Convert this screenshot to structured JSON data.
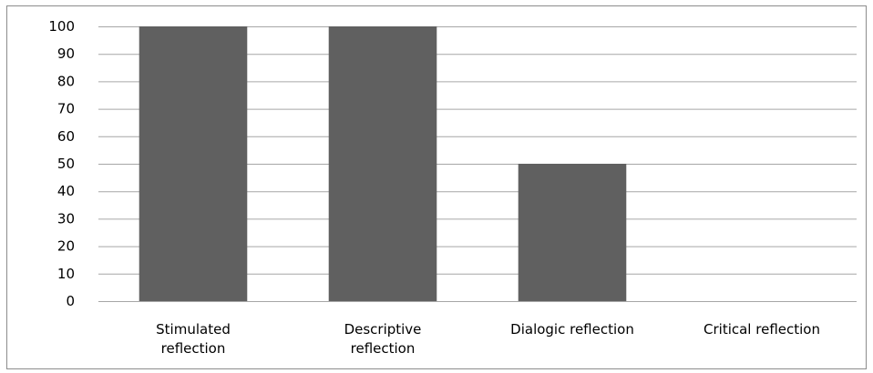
{
  "chart_data": {
    "type": "bar",
    "categories": [
      [
        "Stimulated",
        "reflection"
      ],
      [
        "Descriptive",
        "reflection"
      ],
      [
        "Dialogic reflection"
      ],
      [
        "Critical reflection"
      ]
    ],
    "values": [
      100,
      100,
      50,
      0
    ],
    "ylim": [
      0,
      100
    ],
    "yticks": [
      "0",
      "10",
      "20",
      "30",
      "40",
      "50",
      "60",
      "70",
      "80",
      "90",
      "100"
    ],
    "grid": true,
    "legend": "none",
    "bar_color": "#606060",
    "grid_color": "#a6a6a6"
  }
}
